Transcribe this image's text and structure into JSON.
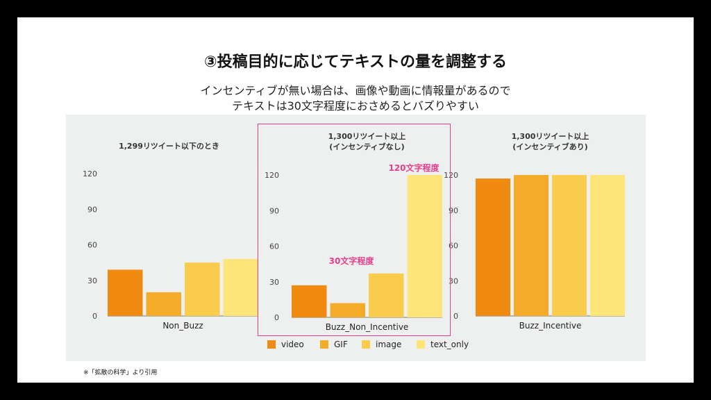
{
  "slide": {
    "title": "③投稿目的に応じてテキストの量を調整する",
    "subtitle_line1": "インセンティブが無い場合は、画像や動画に情報量があるので",
    "subtitle_line2": "テキストは30文字程度におさめるとバズりやすい",
    "footnote": "※「拡散の科学」より引用"
  },
  "colors": {
    "video": "#f08a10",
    "GIF": "#f5ab2a",
    "image": "#f9cc4c",
    "text_only": "#fde57a",
    "highlight": "#e83e8c"
  },
  "annotations": {
    "short": "30文字程度",
    "long": "120文字程度"
  },
  "chart_data": [
    {
      "type": "bar",
      "title": "1,299リツイート以下のとき",
      "categories": [
        "Non_Buzz"
      ],
      "series": [
        {
          "name": "video",
          "values": [
            39
          ]
        },
        {
          "name": "GIF",
          "values": [
            20
          ]
        },
        {
          "name": "image",
          "values": [
            45
          ]
        },
        {
          "name": "text_only",
          "values": [
            48
          ]
        }
      ],
      "yticks": [
        0,
        30,
        60,
        90,
        120
      ],
      "ylim": [
        0,
        120
      ]
    },
    {
      "type": "bar",
      "title": "1,300リツイート以上\n(インセンティブなし)",
      "categories": [
        "Buzz_Non_Incentive"
      ],
      "series": [
        {
          "name": "video",
          "values": [
            27
          ]
        },
        {
          "name": "GIF",
          "values": [
            12
          ]
        },
        {
          "name": "image",
          "values": [
            37
          ]
        },
        {
          "name": "text_only",
          "values": [
            120
          ]
        }
      ],
      "yticks": [
        0,
        30,
        60,
        90,
        120
      ],
      "ylim": [
        0,
        120
      ]
    },
    {
      "type": "bar",
      "title": "1,300リツイート以上\n(インセンティブあり)",
      "categories": [
        "Buzz_Incentive"
      ],
      "series": [
        {
          "name": "video",
          "values": [
            117
          ]
        },
        {
          "name": "GIF",
          "values": [
            120
          ]
        },
        {
          "name": "image",
          "values": [
            120
          ]
        },
        {
          "name": "text_only",
          "values": [
            120
          ]
        }
      ],
      "yticks": [
        0,
        30,
        60,
        90,
        120
      ],
      "ylim": [
        0,
        120
      ]
    }
  ],
  "legend": [
    "video",
    "GIF",
    "image",
    "text_only"
  ]
}
